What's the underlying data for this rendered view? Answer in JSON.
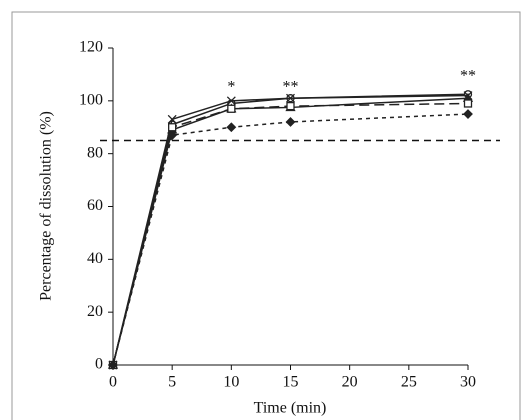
{
  "chart_data": {
    "type": "line",
    "xlabel": "Time (min)",
    "ylabel": "Percentage of dissolution (%)",
    "x": [
      0,
      5,
      10,
      15,
      30
    ],
    "xlim": [
      0,
      30
    ],
    "xticks": [
      0,
      5,
      10,
      15,
      20,
      25,
      30
    ],
    "ylim": [
      0,
      120
    ],
    "yticks": [
      0,
      20,
      40,
      60,
      80,
      100,
      120
    ],
    "reference_line": 85,
    "series": [
      {
        "color": "#222222",
        "dash": "solid",
        "marker": "circle",
        "values": [
          0,
          91,
          99,
          101,
          102.5
        ]
      },
      {
        "color": "#222222",
        "dash": "solid",
        "marker": "x",
        "values": [
          0,
          93,
          100,
          101,
          102
        ]
      },
      {
        "color": "#222222",
        "dash": "solid",
        "marker": "triangle",
        "values": [
          0,
          89,
          97,
          97.5,
          101
        ]
      },
      {
        "color": "#222222",
        "dash": "longdash",
        "marker": "square",
        "values": [
          0,
          90,
          97,
          98,
          99
        ]
      },
      {
        "color": "#222222",
        "dash": "dash",
        "marker": "diamond",
        "values": [
          0,
          87,
          90,
          92,
          95
        ]
      }
    ],
    "annotations": [
      {
        "x": 10,
        "y": 105,
        "text": "*"
      },
      {
        "x": 15,
        "y": 105,
        "text": "**"
      },
      {
        "x": 30,
        "y": 109,
        "text": "**"
      }
    ]
  }
}
